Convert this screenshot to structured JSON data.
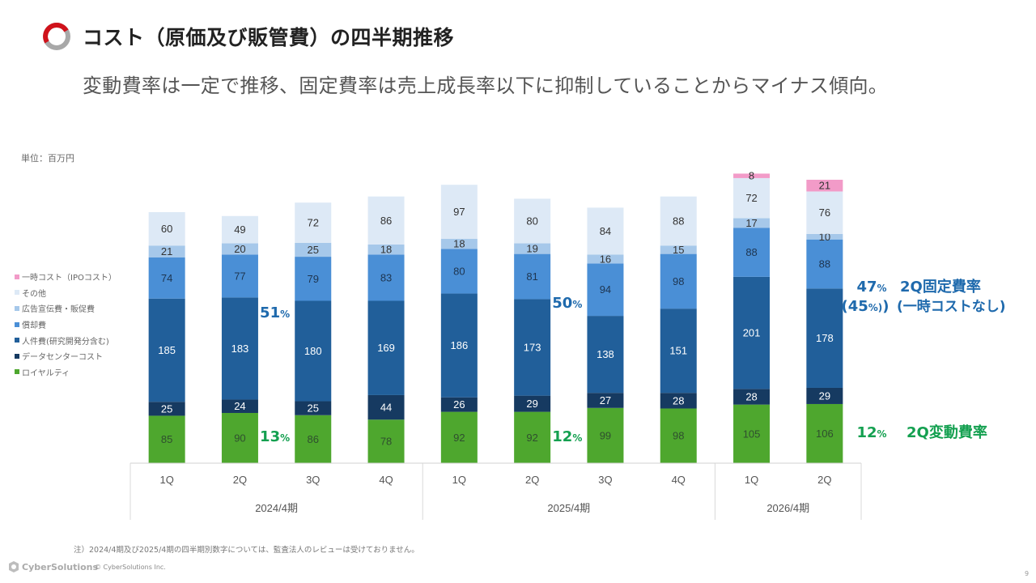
{
  "header": {
    "title": "コスト（原価及び販管費）の四半期推移",
    "subtitle": "変動費率は一定で推移、固定費率は売上成長率以下に抑制していることからマイナス傾向。"
  },
  "unit_label": "単位：百万円",
  "note": "注）2024/4期及び2025/4期の四半期別数字については、監査法人のレビューは受けておりません。",
  "footer": {
    "brand": "CyberSolutions",
    "copyright": "© CyberSolutions Inc.",
    "page_number": "9"
  },
  "colors": {
    "brand_red": "#d0121b",
    "brand_gray": "#a0a0a0",
    "fixed_rate_blue": "#1f6aad",
    "variable_rate_green": "#14a050"
  },
  "chart_data": {
    "type": "bar",
    "stacked": true,
    "title": "コスト（原価及び販管費）の四半期推移",
    "xlabel": "",
    "ylabel": "単位：百万円",
    "ylim": [
      0,
      520
    ],
    "grid": false,
    "legend_position": "left",
    "categories": [
      "1Q",
      "2Q",
      "3Q",
      "4Q",
      "1Q",
      "2Q",
      "3Q",
      "4Q",
      "1Q",
      "2Q"
    ],
    "category_groups": [
      {
        "label": "2024/4期",
        "count": 4
      },
      {
        "label": "2025/4期",
        "count": 4
      },
      {
        "label": "2026/4期",
        "count": 2
      }
    ],
    "series": [
      {
        "name": "ロイヤルティ",
        "color": "#4ea72e",
        "label_color": "#2f4f2f",
        "values": [
          85,
          90,
          86,
          78,
          92,
          92,
          99,
          98,
          105,
          106
        ]
      },
      {
        "name": "データセンターコスト",
        "color": "#163a61",
        "label_color": "#ffffff",
        "values": [
          25,
          24,
          25,
          44,
          26,
          29,
          27,
          28,
          28,
          29
        ]
      },
      {
        "name": "人件費(研究開発分含む)",
        "color": "#215f9a",
        "label_color": "#ffffff",
        "values": [
          185,
          183,
          180,
          169,
          186,
          173,
          138,
          151,
          201,
          178
        ]
      },
      {
        "name": "償却費",
        "color": "#4a8fd6",
        "label_color": "#1e3550",
        "values": [
          74,
          77,
          79,
          83,
          80,
          81,
          94,
          98,
          88,
          88
        ]
      },
      {
        "name": "広告宣伝費・販促費",
        "color": "#a6c8ea",
        "label_color": "#333333",
        "values": [
          21,
          20,
          25,
          18,
          18,
          19,
          16,
          15,
          17,
          10
        ]
      },
      {
        "name": "その他",
        "color": "#dde9f6",
        "label_color": "#333333",
        "values": [
          60,
          49,
          72,
          86,
          97,
          80,
          84,
          88,
          72,
          76
        ]
      },
      {
        "name": "一時コスト（IPOコスト）",
        "color": "#f29bc8",
        "label_color": "#333333",
        "values": [
          0,
          0,
          0,
          0,
          0,
          0,
          0,
          0,
          8,
          21
        ]
      }
    ],
    "legend_order": [
      "一時コスト（IPOコスト）",
      "その他",
      "広告宣伝費・販促費",
      "償却費",
      "人件費(研究開発分含む)",
      "データセンターコスト",
      "ロイヤルティ"
    ],
    "annotations": [
      {
        "after_index": 1,
        "series_anchor": "fixed",
        "value": "51",
        "unit": "%",
        "color": "#1f6aad"
      },
      {
        "after_index": 1,
        "series_anchor": "variable",
        "value": "13",
        "unit": "%",
        "color": "#14a050"
      },
      {
        "after_index": 5,
        "series_anchor": "fixed",
        "value": "50",
        "unit": "%",
        "color": "#1f6aad"
      },
      {
        "after_index": 5,
        "series_anchor": "variable",
        "value": "12",
        "unit": "%",
        "color": "#14a050"
      },
      {
        "after_index": 9,
        "series_anchor": "fixed",
        "value": "47",
        "unit": "%",
        "color": "#1f6aad",
        "sub_value": "(45",
        "sub_unit": "%)",
        "label": "2Q固定費率",
        "sub_label": "(一時コストなし)"
      },
      {
        "after_index": 9,
        "series_anchor": "variable",
        "value": "12",
        "unit": "%",
        "color": "#14a050",
        "label": "2Q変動費率"
      }
    ]
  }
}
